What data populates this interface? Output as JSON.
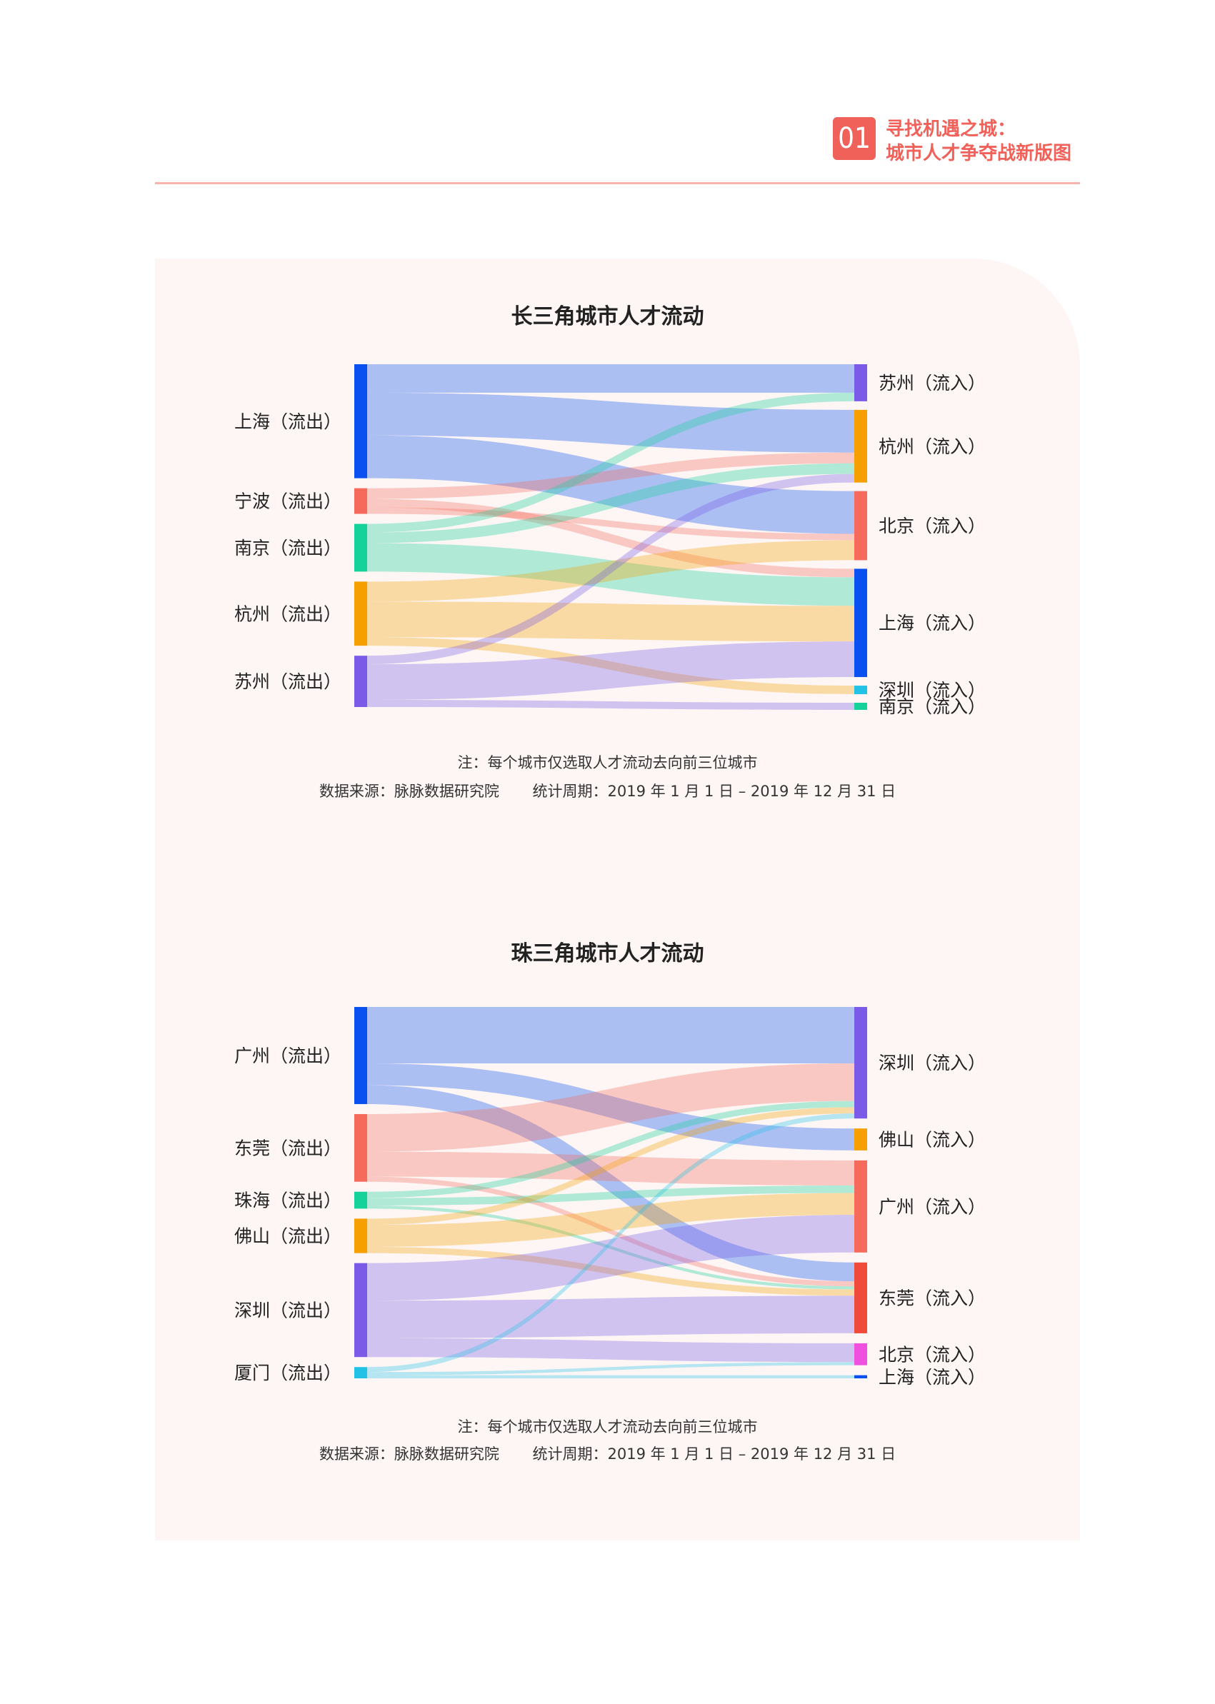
{
  "header": {
    "number": "01",
    "title_line1": "寻找机遇之城：",
    "title_line2": "城市人才争夺战新版图",
    "accent": "#f0615a"
  },
  "chart_data": [
    {
      "type": "sankey",
      "title": "长三角城市人才流动",
      "note": "注：每个城市仅选取人才流动去向前三位城市",
      "source": "数据来源：脉脉数据研究院",
      "period": "统计周期：2019 年 1 月 1 日 – 2019 年 12 月 31 日",
      "sources": [
        {
          "name": "上海（流出）",
          "color": "#0a50f0"
        },
        {
          "name": "宁波（流出）",
          "color": "#f56a5a"
        },
        {
          "name": "南京（流出）",
          "color": "#14d29a"
        },
        {
          "name": "杭州（流出）",
          "color": "#f5a000"
        },
        {
          "name": "苏州（流出）",
          "color": "#7a5ae6"
        }
      ],
      "targets": [
        {
          "name": "苏州（流入）",
          "color": "#7a5ae6"
        },
        {
          "name": "杭州（流入）",
          "color": "#f5a000"
        },
        {
          "name": "北京（流入）",
          "color": "#f56a5a"
        },
        {
          "name": "上海（流入）",
          "color": "#0a50f0"
        },
        {
          "name": "深圳（流入）",
          "color": "#22c2e6"
        },
        {
          "name": "南京（流入）",
          "color": "#14d29a"
        }
      ],
      "flows": [
        {
          "s": 0,
          "t": 0,
          "value": 4
        },
        {
          "s": 0,
          "t": 1,
          "value": 6
        },
        {
          "s": 0,
          "t": 2,
          "value": 6
        },
        {
          "s": 1,
          "t": 1,
          "value": 1.5
        },
        {
          "s": 1,
          "t": 3,
          "value": 1.2
        },
        {
          "s": 1,
          "t": 2,
          "value": 0.9
        },
        {
          "s": 2,
          "t": 0,
          "value": 1.2
        },
        {
          "s": 2,
          "t": 1,
          "value": 1.5
        },
        {
          "s": 2,
          "t": 3,
          "value": 4
        },
        {
          "s": 3,
          "t": 2,
          "value": 2.8
        },
        {
          "s": 3,
          "t": 3,
          "value": 5
        },
        {
          "s": 3,
          "t": 4,
          "value": 1.2
        },
        {
          "s": 4,
          "t": 1,
          "value": 1.2
        },
        {
          "s": 4,
          "t": 3,
          "value": 5
        },
        {
          "s": 4,
          "t": 5,
          "value": 1
        }
      ]
    },
    {
      "type": "sankey",
      "title": "珠三角城市人才流动",
      "note": "注：每个城市仅选取人才流动去向前三位城市",
      "source": "数据来源：脉脉数据研究院",
      "period": "统计周期：2019 年 1 月 1 日 – 2019 年 12 月 31 日",
      "sources": [
        {
          "name": "广州（流出）",
          "color": "#0a50f0"
        },
        {
          "name": "东莞（流出）",
          "color": "#f56a5a"
        },
        {
          "name": "珠海（流出）",
          "color": "#14d29a"
        },
        {
          "name": "佛山（流出）",
          "color": "#f5a000"
        },
        {
          "name": "深圳（流出）",
          "color": "#7a5ae6"
        },
        {
          "name": "厦门（流出）",
          "color": "#22c2e6"
        }
      ],
      "targets": [
        {
          "name": "深圳（流入）",
          "color": "#7a5ae6"
        },
        {
          "name": "佛山（流入）",
          "color": "#f5a000"
        },
        {
          "name": "广州（流入）",
          "color": "#f56a5a"
        },
        {
          "name": "东莞（流入）",
          "color": "#f04a3a"
        },
        {
          "name": "北京（流入）",
          "color": "#f050e0"
        },
        {
          "name": "上海（流入）",
          "color": "#0a50f0"
        }
      ],
      "flows": [
        {
          "s": 0,
          "t": 0,
          "value": 9
        },
        {
          "s": 0,
          "t": 1,
          "value": 3.5
        },
        {
          "s": 0,
          "t": 3,
          "value": 3
        },
        {
          "s": 1,
          "t": 0,
          "value": 6
        },
        {
          "s": 1,
          "t": 2,
          "value": 4
        },
        {
          "s": 1,
          "t": 3,
          "value": 0.8
        },
        {
          "s": 2,
          "t": 0,
          "value": 1
        },
        {
          "s": 2,
          "t": 2,
          "value": 1.2
        },
        {
          "s": 2,
          "t": 3,
          "value": 0.5
        },
        {
          "s": 3,
          "t": 0,
          "value": 1
        },
        {
          "s": 3,
          "t": 2,
          "value": 3.5
        },
        {
          "s": 3,
          "t": 3,
          "value": 1
        },
        {
          "s": 4,
          "t": 2,
          "value": 6
        },
        {
          "s": 4,
          "t": 3,
          "value": 6
        },
        {
          "s": 4,
          "t": 4,
          "value": 3
        },
        {
          "s": 5,
          "t": 0,
          "value": 0.8
        },
        {
          "s": 5,
          "t": 4,
          "value": 0.5
        },
        {
          "s": 5,
          "t": 5,
          "value": 0.5
        }
      ]
    }
  ]
}
